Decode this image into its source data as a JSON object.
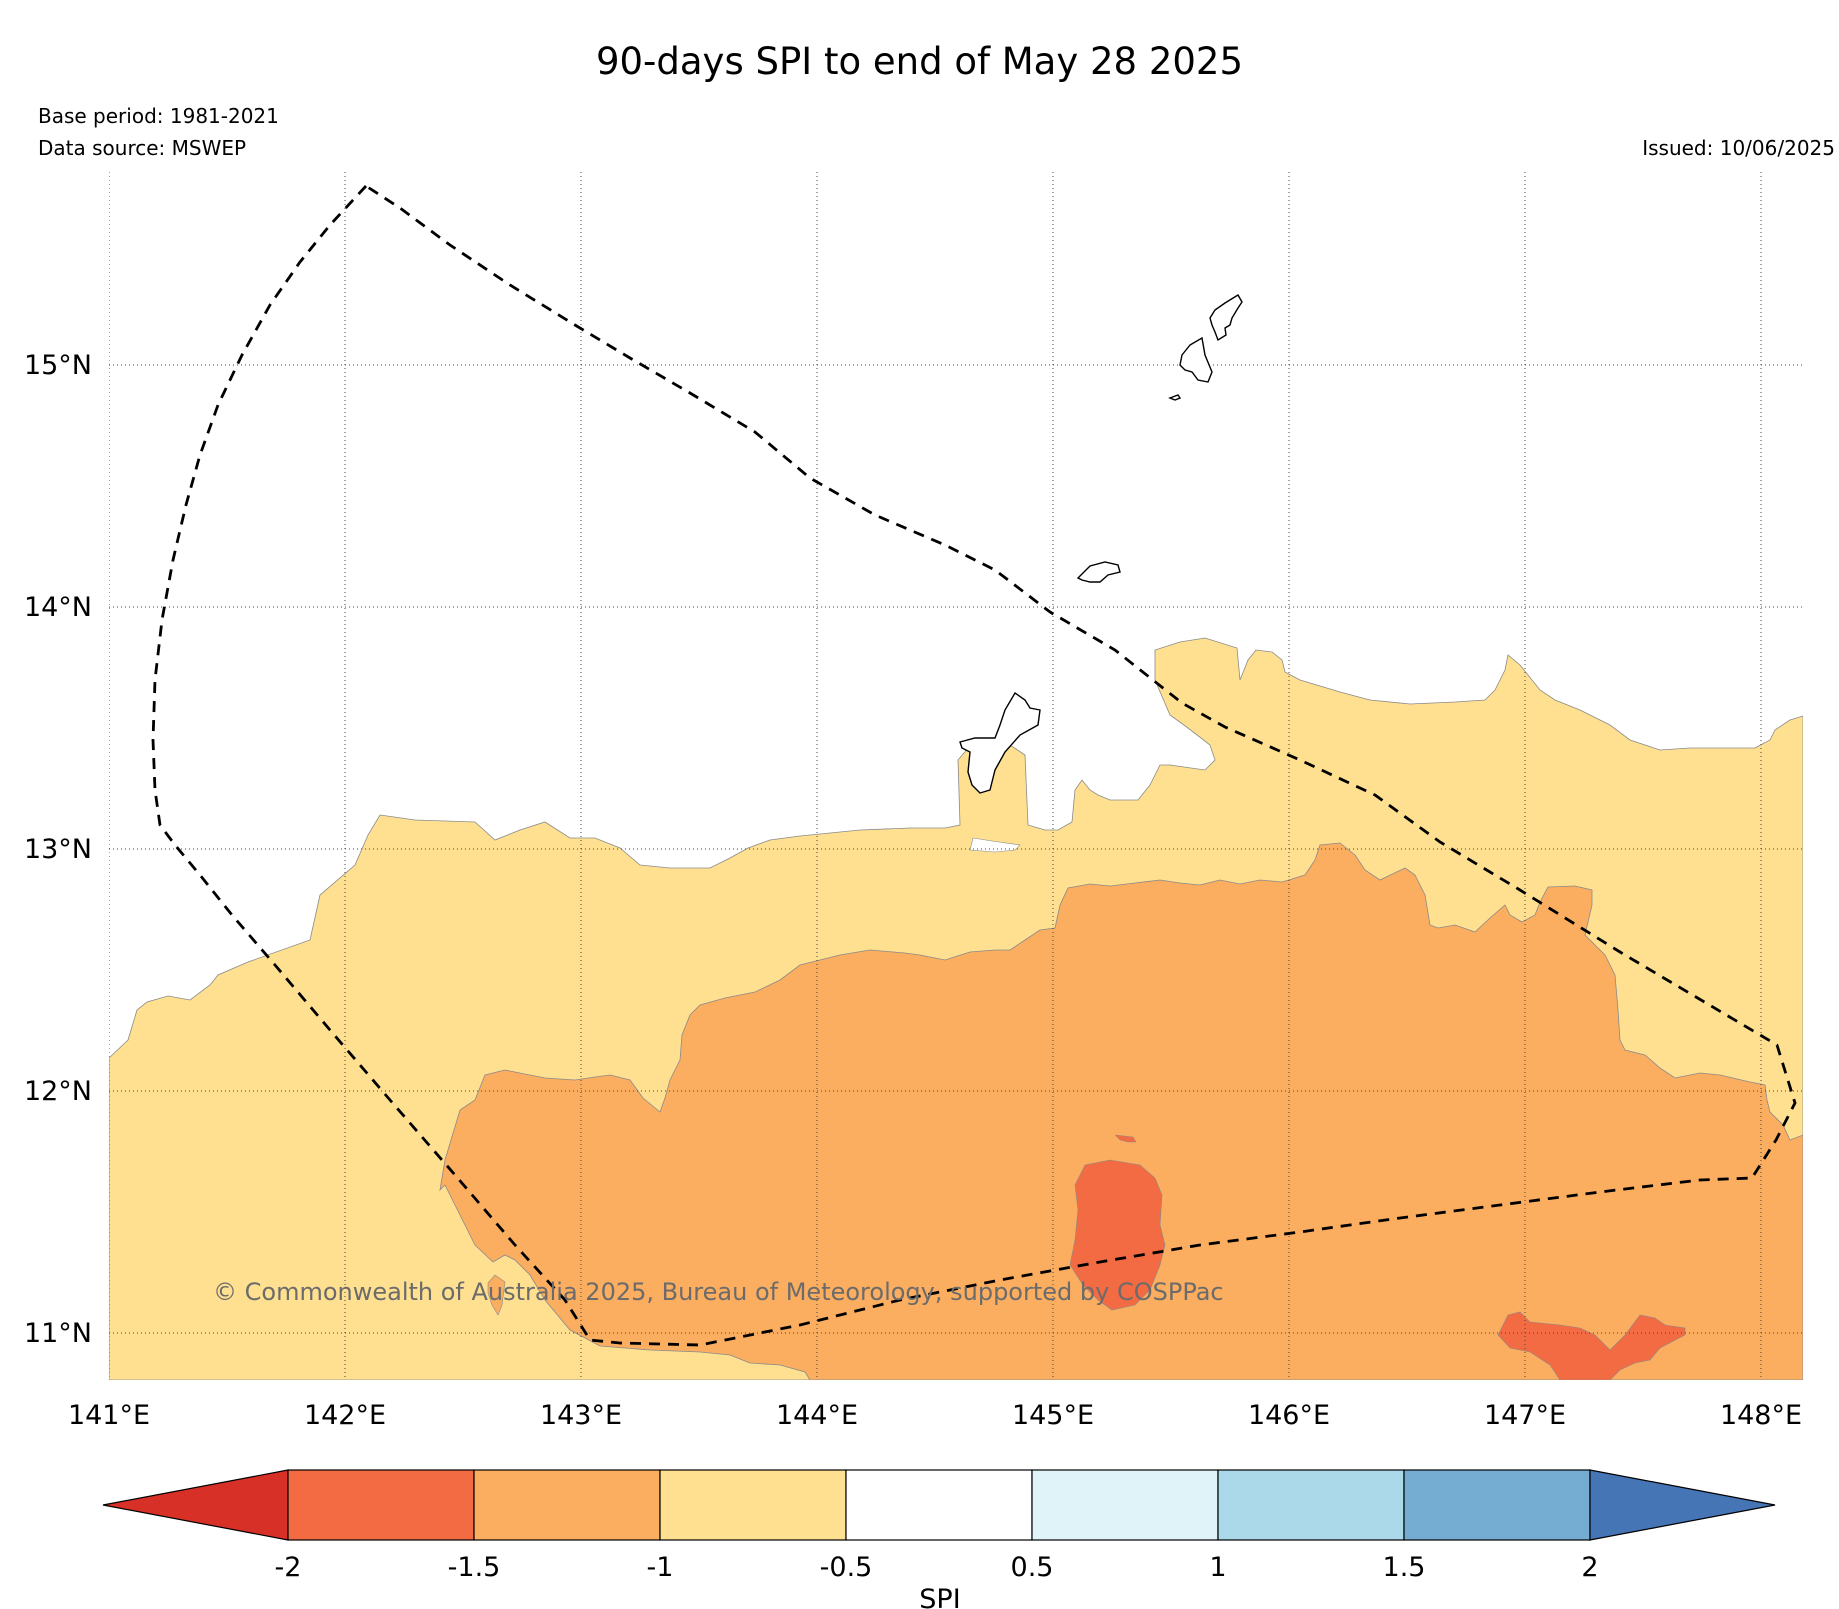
{
  "header": {
    "title": "90-days SPI to end of May 28 2025",
    "base_period": "Base period: 1981-2021",
    "data_source": "Data source: MSWEP",
    "issued": "Issued: 10/06/2025"
  },
  "map": {
    "lat_labels": [
      "15°N",
      "14°N",
      "13°N",
      "12°N",
      "11°N"
    ],
    "lon_labels": [
      "141°E",
      "142°E",
      "143°E",
      "144°E",
      "145°E",
      "146°E",
      "147°E",
      "148°E"
    ],
    "copyright": "© Commonwealth of Australia 2025, Bureau of Meteorology, supported by COSPPac",
    "spi_category_colors": {
      "below_-2": "#d73027",
      "-2_to_-1.5": "#f26b42",
      "-1.5_to_-1": "#fbad60",
      "-1_to_-0.5": "#fee090",
      "-0.5_to_0.5": "#ffffff",
      "0.5_to_1": "#e0f3f8",
      "1_to_1.5": "#abd9e9",
      "1.5_to_2": "#74add1",
      "above_2": "#4575b4"
    }
  },
  "colorbar": {
    "label": "SPI",
    "ticks": [
      "-2",
      "-1.5",
      "-1",
      "-0.5",
      "0.5",
      "1",
      "1.5",
      "2"
    ],
    "colors": [
      "#d73027",
      "#f26b42",
      "#fbad60",
      "#fee090",
      "#ffffff",
      "#e0f3f8",
      "#abd9e9",
      "#74add1",
      "#4575b4"
    ]
  }
}
